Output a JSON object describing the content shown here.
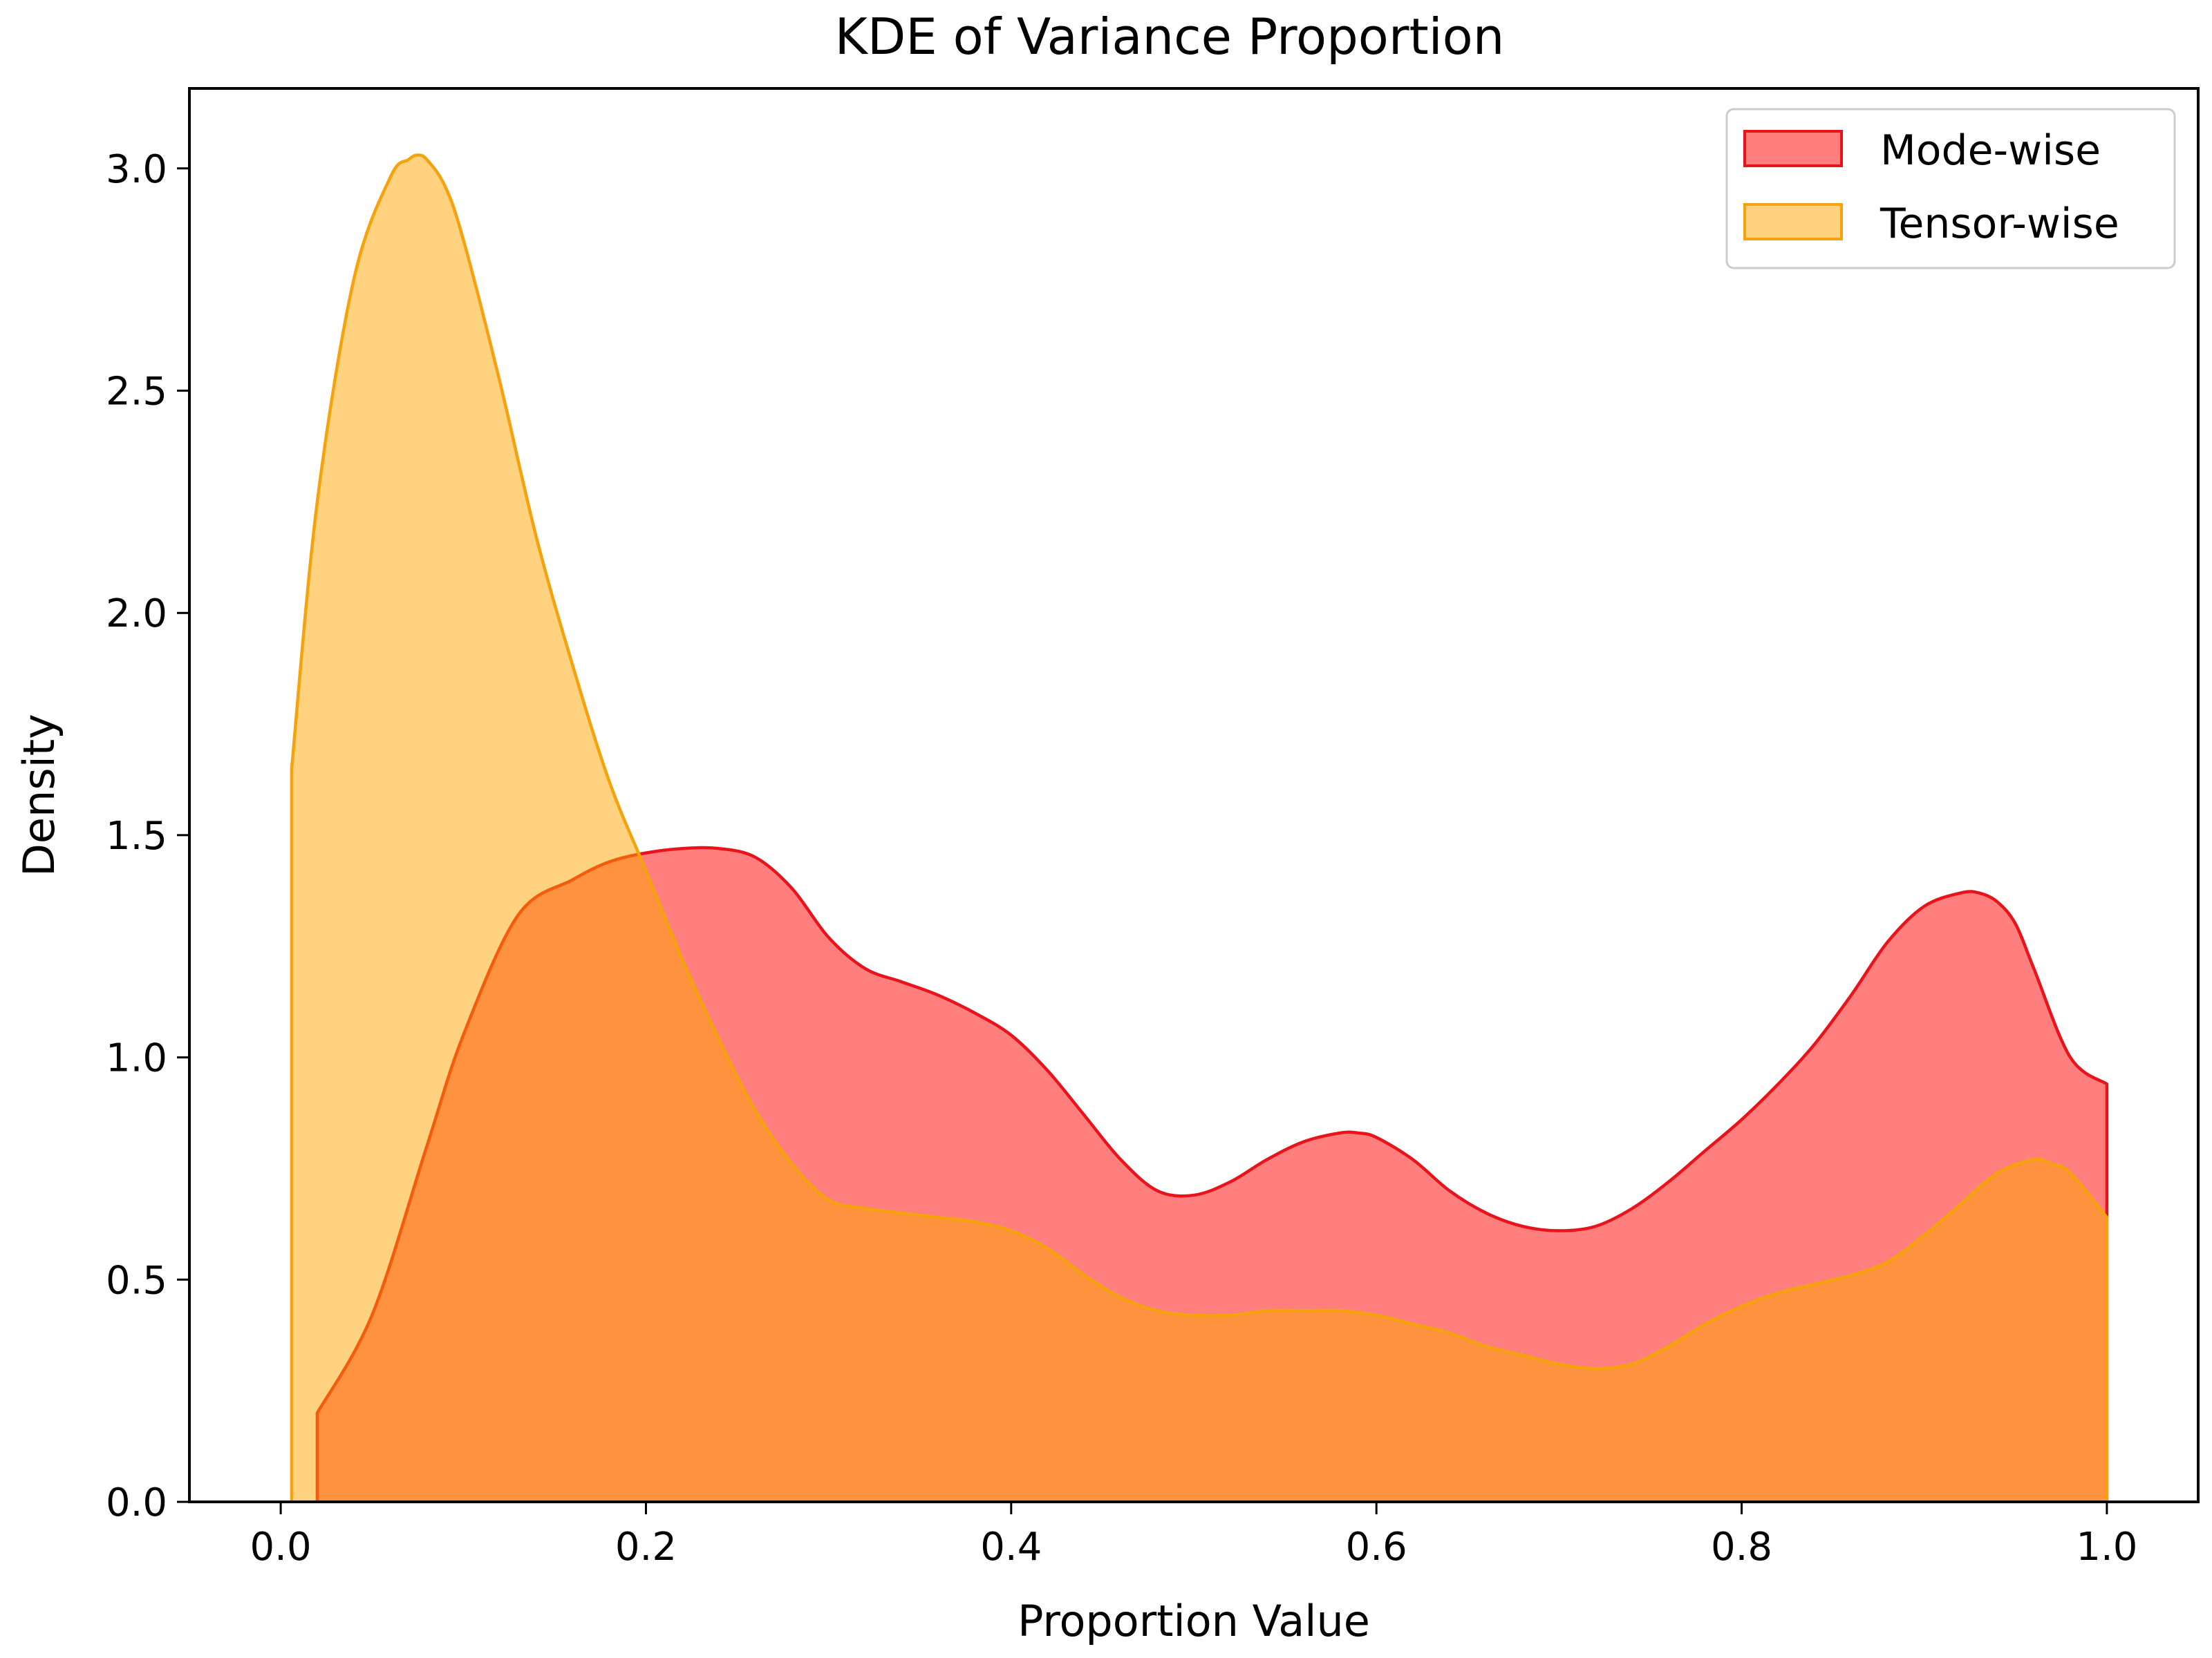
{
  "chart_data": {
    "type": "area",
    "title": "KDE of Variance Proportion",
    "xlabel": "Proportion Value",
    "ylabel": "Density",
    "xlim": [
      -0.05,
      1.05
    ],
    "ylim": [
      0,
      3.18
    ],
    "xticks": [
      0.0,
      0.2,
      0.4,
      0.6,
      0.8,
      1.0
    ],
    "xtick_labels": [
      "0.0",
      "0.2",
      "0.4",
      "0.6",
      "0.8",
      "1.0"
    ],
    "yticks": [
      0.0,
      0.5,
      1.0,
      1.5,
      2.0,
      2.5,
      3.0
    ],
    "ytick_labels": [
      "0.0",
      "0.5",
      "1.0",
      "1.5",
      "2.0",
      "2.5",
      "3.0"
    ],
    "legend_position": "top-right",
    "series": [
      {
        "name": "Mode-wise",
        "fill": "#ff7f7f",
        "stroke": "#e8131b",
        "x": [
          0.02,
          0.05,
          0.08,
          0.1,
          0.13,
          0.16,
          0.18,
          0.2,
          0.22,
          0.24,
          0.26,
          0.28,
          0.3,
          0.32,
          0.34,
          0.36,
          0.38,
          0.4,
          0.42,
          0.44,
          0.46,
          0.48,
          0.5,
          0.52,
          0.54,
          0.56,
          0.58,
          0.59,
          0.6,
          0.62,
          0.64,
          0.66,
          0.68,
          0.7,
          0.72,
          0.74,
          0.76,
          0.78,
          0.8,
          0.82,
          0.84,
          0.86,
          0.88,
          0.9,
          0.92,
          0.93,
          0.94,
          0.95,
          0.96,
          0.98,
          1.0
        ],
        "y": [
          0.2,
          0.42,
          0.8,
          1.05,
          1.32,
          1.4,
          1.44,
          1.46,
          1.47,
          1.47,
          1.45,
          1.38,
          1.27,
          1.2,
          1.17,
          1.14,
          1.1,
          1.05,
          0.97,
          0.87,
          0.77,
          0.7,
          0.69,
          0.72,
          0.77,
          0.81,
          0.83,
          0.83,
          0.82,
          0.77,
          0.7,
          0.65,
          0.62,
          0.61,
          0.62,
          0.66,
          0.72,
          0.79,
          0.86,
          0.94,
          1.03,
          1.14,
          1.26,
          1.34,
          1.37,
          1.37,
          1.35,
          1.3,
          1.2,
          1.0,
          0.94
        ]
      },
      {
        "name": "Tensor-wise",
        "fill": "#ffa500",
        "fill_opacity": 0.5,
        "stroke": "#f5a20c",
        "x": [
          0.006,
          0.02,
          0.04,
          0.06,
          0.07,
          0.075,
          0.08,
          0.09,
          0.1,
          0.12,
          0.14,
          0.16,
          0.18,
          0.2,
          0.22,
          0.24,
          0.26,
          0.28,
          0.3,
          0.32,
          0.34,
          0.36,
          0.38,
          0.4,
          0.42,
          0.44,
          0.46,
          0.48,
          0.5,
          0.52,
          0.54,
          0.56,
          0.58,
          0.6,
          0.62,
          0.64,
          0.66,
          0.68,
          0.7,
          0.72,
          0.74,
          0.76,
          0.78,
          0.8,
          0.82,
          0.84,
          0.86,
          0.88,
          0.9,
          0.92,
          0.94,
          0.96,
          0.97,
          0.98,
          1.0
        ],
        "y": [
          1.65,
          2.25,
          2.75,
          2.98,
          3.02,
          3.03,
          3.02,
          2.96,
          2.84,
          2.52,
          2.17,
          1.88,
          1.62,
          1.42,
          1.22,
          1.04,
          0.88,
          0.76,
          0.68,
          0.66,
          0.65,
          0.64,
          0.63,
          0.61,
          0.57,
          0.51,
          0.46,
          0.43,
          0.42,
          0.42,
          0.43,
          0.43,
          0.43,
          0.42,
          0.4,
          0.38,
          0.35,
          0.33,
          0.31,
          0.3,
          0.31,
          0.35,
          0.4,
          0.44,
          0.47,
          0.49,
          0.51,
          0.54,
          0.6,
          0.67,
          0.74,
          0.77,
          0.76,
          0.74,
          0.64
        ]
      }
    ]
  }
}
